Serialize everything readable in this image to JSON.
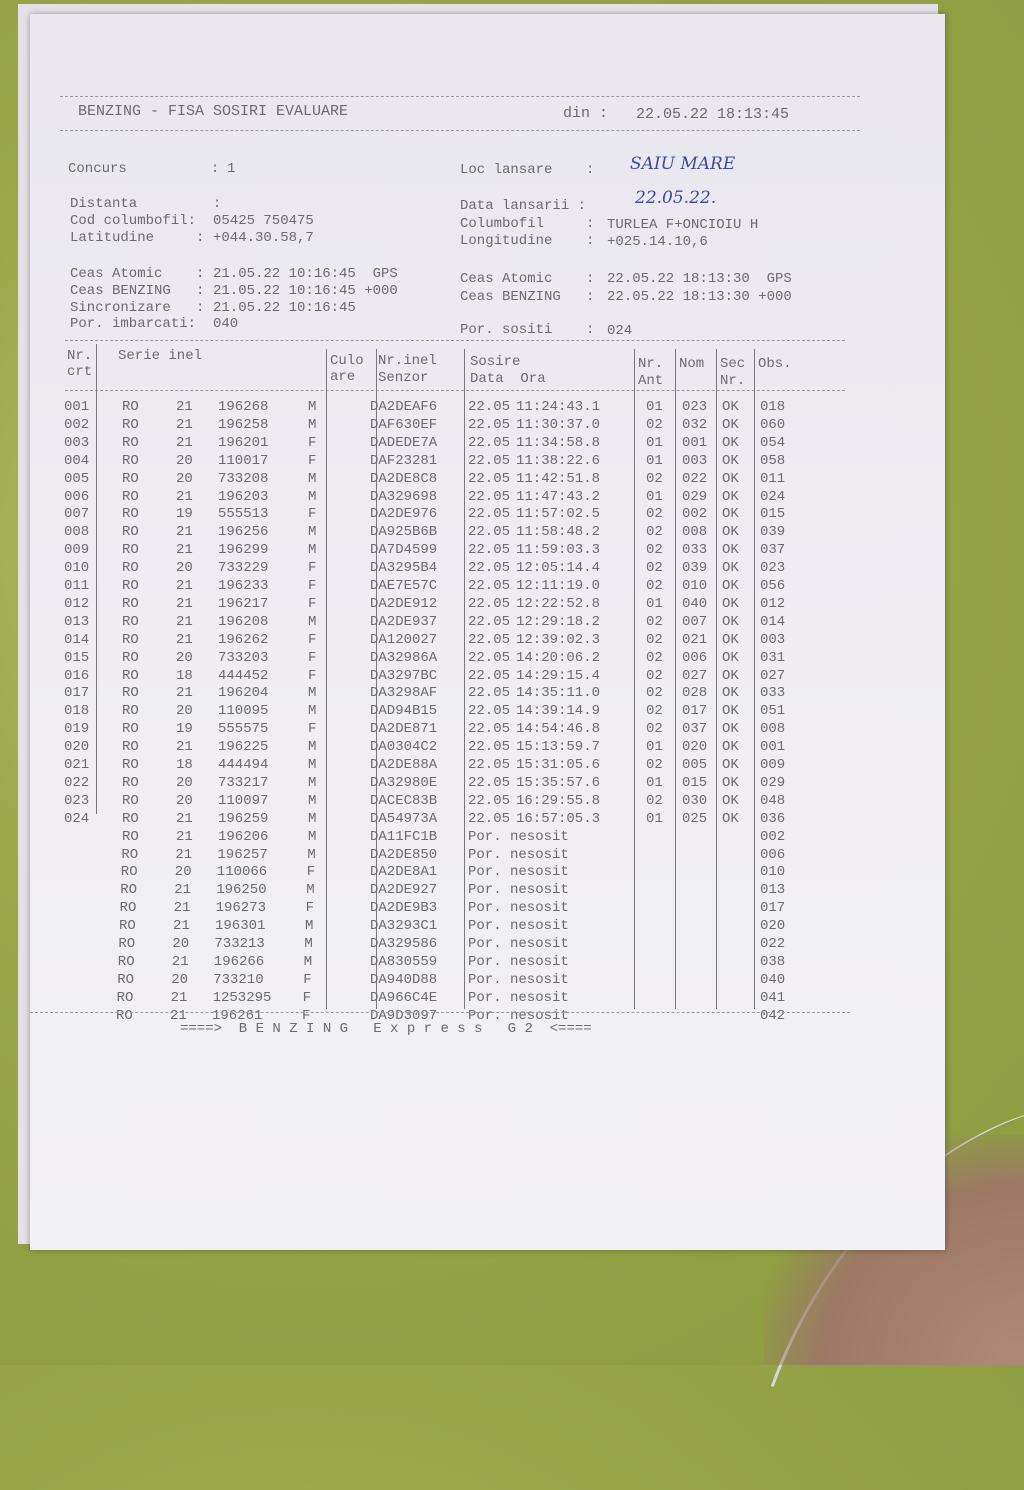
{
  "header": {
    "title": "BENZING - FISA SOSIRI EVALUARE",
    "din_label": "din :",
    "din_value": "22.05.22 18:13:45"
  },
  "info": {
    "concurs_label": "Concurs          :",
    "concurs_value": "1",
    "loc_lansare_label": "Loc lansare    :",
    "loc_lansare_value": "SAIU MARE",
    "distanta_label": "Distanta         :",
    "data_lansarii_label": "Data lansarii :",
    "data_lansarii_value": "22.05.22.",
    "cod_label": "Cod columbofil:",
    "cod_value": "05425 750475",
    "columbofil_label": "Columbofil     :",
    "columbofil_value": "TURLEA F+ONCIOIU H",
    "lat_label": "Latitudine     :",
    "lat_value": "+044.30.58,7",
    "long_label": "Longitudine    :",
    "long_value": "+025.14.10,6",
    "ceas_atomic_label": "Ceas Atomic    :",
    "ceas_atomic_value": "21.05.22 10:16:45  GPS",
    "ceas_benzing_label": "Ceas BENZING   :",
    "ceas_benzing_value": "21.05.22 10:16:45 +000",
    "sinc_label": "Sincronizare   :",
    "sinc_value": "21.05.22 10:16:45",
    "imbarcati_label": "Por. imbarcati:",
    "imbarcati_value": "040",
    "ceas_atomic2_label": "Ceas Atomic    :",
    "ceas_atomic2_value": "22.05.22 18:13:30  GPS",
    "ceas_benzing2_label": "Ceas BENZING   :",
    "ceas_benzing2_value": "22.05.22 18:13:30 +000",
    "sositi_label": "Por. sositi    :",
    "sositi_value": "024"
  },
  "table": {
    "headers": {
      "nr1": "Nr.",
      "nr2": "crt",
      "serie": "Serie inel",
      "culo1": "Culo",
      "culo2": "are",
      "senzor1": "Nr.inel",
      "senzor2": "Senzor",
      "sosire1": "Sosire",
      "sosire2": "Data  Ora",
      "ant1": "Nr.",
      "ant2": "Ant",
      "nom": "Nom",
      "sec1": "Sec",
      "sec2": "Nr.",
      "obs": "Obs."
    },
    "rows": [
      [
        "001",
        "RO",
        "21",
        "196268",
        "M",
        "DA2DEAF6",
        "22.05",
        "11:24:43.1",
        "01",
        "023",
        "OK",
        "018"
      ],
      [
        "002",
        "RO",
        "21",
        "196258",
        "M",
        "DAF630EF",
        "22.05",
        "11:30:37.0",
        "02",
        "032",
        "OK",
        "060"
      ],
      [
        "003",
        "RO",
        "21",
        "196201",
        "F",
        "DADEDE7A",
        "22.05",
        "11:34:58.8",
        "01",
        "001",
        "OK",
        "054"
      ],
      [
        "004",
        "RO",
        "20",
        "110017",
        "F",
        "DAF23281",
        "22.05",
        "11:38:22.6",
        "01",
        "003",
        "OK",
        "058"
      ],
      [
        "005",
        "RO",
        "20",
        "733208",
        "M",
        "DA2DE8C8",
        "22.05",
        "11:42:51.8",
        "02",
        "022",
        "OK",
        "011"
      ],
      [
        "006",
        "RO",
        "21",
        "196203",
        "M",
        "DA329698",
        "22.05",
        "11:47:43.2",
        "01",
        "029",
        "OK",
        "024"
      ],
      [
        "007",
        "RO",
        "19",
        "555513",
        "F",
        "DA2DE976",
        "22.05",
        "11:57:02.5",
        "02",
        "002",
        "OK",
        "015"
      ],
      [
        "008",
        "RO",
        "21",
        "196256",
        "M",
        "DA925B6B",
        "22.05",
        "11:58:48.2",
        "02",
        "008",
        "OK",
        "039"
      ],
      [
        "009",
        "RO",
        "21",
        "196299",
        "M",
        "DA7D4599",
        "22.05",
        "11:59:03.3",
        "02",
        "033",
        "OK",
        "037"
      ],
      [
        "010",
        "RO",
        "20",
        "733229",
        "F",
        "DA3295B4",
        "22.05",
        "12:05:14.4",
        "02",
        "039",
        "OK",
        "023"
      ],
      [
        "011",
        "RO",
        "21",
        "196233",
        "F",
        "DAE7E57C",
        "22.05",
        "12:11:19.0",
        "02",
        "010",
        "OK",
        "056"
      ],
      [
        "012",
        "RO",
        "21",
        "196217",
        "F",
        "DA2DE912",
        "22.05",
        "12:22:52.8",
        "01",
        "040",
        "OK",
        "012"
      ],
      [
        "013",
        "RO",
        "21",
        "196208",
        "M",
        "DA2DE937",
        "22.05",
        "12:29:18.2",
        "02",
        "007",
        "OK",
        "014"
      ],
      [
        "014",
        "RO",
        "21",
        "196262",
        "F",
        "DA120027",
        "22.05",
        "12:39:02.3",
        "02",
        "021",
        "OK",
        "003"
      ],
      [
        "015",
        "RO",
        "20",
        "733203",
        "F",
        "DA32986A",
        "22.05",
        "14:20:06.2",
        "02",
        "006",
        "OK",
        "031"
      ],
      [
        "016",
        "RO",
        "18",
        "444452",
        "F",
        "DA3297BC",
        "22.05",
        "14:29:15.4",
        "02",
        "027",
        "OK",
        "027"
      ],
      [
        "017",
        "RO",
        "21",
        "196204",
        "M",
        "DA3298AF",
        "22.05",
        "14:35:11.0",
        "02",
        "028",
        "OK",
        "033"
      ],
      [
        "018",
        "RO",
        "20",
        "110095",
        "M",
        "DAD94B15",
        "22.05",
        "14:39:14.9",
        "02",
        "017",
        "OK",
        "051"
      ],
      [
        "019",
        "RO",
        "19",
        "555575",
        "F",
        "DA2DE871",
        "22.05",
        "14:54:46.8",
        "02",
        "037",
        "OK",
        "008"
      ],
      [
        "020",
        "RO",
        "21",
        "196225",
        "M",
        "DA0304C2",
        "22.05",
        "15:13:59.7",
        "01",
        "020",
        "OK",
        "001"
      ],
      [
        "021",
        "RO",
        "18",
        "444494",
        "M",
        "DA2DE88A",
        "22.05",
        "15:31:05.6",
        "02",
        "005",
        "OK",
        "009"
      ],
      [
        "022",
        "RO",
        "20",
        "733217",
        "M",
        "DA32980E",
        "22.05",
        "15:35:57.6",
        "01",
        "015",
        "OK",
        "029"
      ],
      [
        "023",
        "RO",
        "20",
        "110097",
        "M",
        "DACEC83B",
        "22.05",
        "16:29:55.8",
        "02",
        "030",
        "OK",
        "048"
      ],
      [
        "024",
        "RO",
        "21",
        "196259",
        "M",
        "DA54973A",
        "22.05",
        "16:57:05.3",
        "01",
        "025",
        "OK",
        "036"
      ],
      [
        "",
        "RO",
        "21",
        "196206",
        "M",
        "DA11FC1B",
        "Por. nesosit",
        "",
        "",
        "",
        "",
        "002"
      ],
      [
        "",
        "RO",
        "21",
        "196257",
        "M",
        "DA2DE850",
        "Por. nesosit",
        "",
        "",
        "",
        "",
        "006"
      ],
      [
        "",
        "RO",
        "20",
        "110066",
        "F",
        "DA2DE8A1",
        "Por. nesosit",
        "",
        "",
        "",
        "",
        "010"
      ],
      [
        "",
        "RO",
        "21",
        "196250",
        "M",
        "DA2DE927",
        "Por. nesosit",
        "",
        "",
        "",
        "",
        "013"
      ],
      [
        "",
        "RO",
        "21",
        "196273",
        "F",
        "DA2DE9B3",
        "Por. nesosit",
        "",
        "",
        "",
        "",
        "017"
      ],
      [
        "",
        "RO",
        "21",
        "196301",
        "M",
        "DA3293C1",
        "Por. nesosit",
        "",
        "",
        "",
        "",
        "020"
      ],
      [
        "",
        "RO",
        "20",
        "733213",
        "M",
        "DA329586",
        "Por. nesosit",
        "",
        "",
        "",
        "",
        "022"
      ],
      [
        "",
        "RO",
        "21",
        "196266",
        "M",
        "DA830559",
        "Por. nesosit",
        "",
        "",
        "",
        "",
        "038"
      ],
      [
        "",
        "RO",
        "20",
        "733210",
        "F",
        "DA940D88",
        "Por. nesosit",
        "",
        "",
        "",
        "",
        "040"
      ],
      [
        "",
        "RO",
        "21",
        "1253295",
        "F",
        "DA966C4E",
        "Por. nesosit",
        "",
        "",
        "",
        "",
        "041"
      ],
      [
        "",
        "RO",
        "21",
        "196261",
        "F",
        "DA9D3097",
        "Por. nesosit",
        "",
        "",
        "",
        "",
        "042"
      ]
    ]
  },
  "footer": "====>  B E N Z I N G   E x p r e s s   G 2  <===="
}
